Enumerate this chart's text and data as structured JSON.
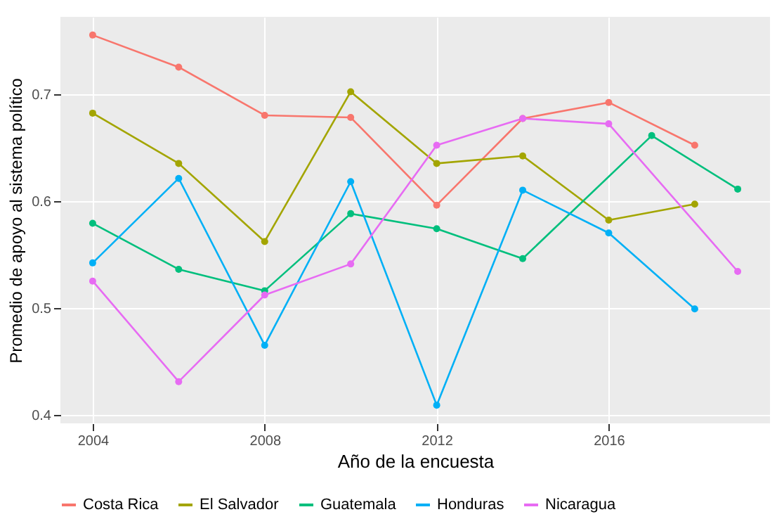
{
  "chart_data": {
    "type": "line",
    "xlabel": "Año de la encuesta",
    "ylabel": "Promedio de apoyo al sistema político",
    "xlim": [
      2003.25,
      2019.75
    ],
    "xticks": [
      2004,
      2008,
      2012,
      2016
    ],
    "ylim": [
      0.392,
      0.772
    ],
    "yticks": [
      0.4,
      0.5,
      0.6,
      0.7
    ],
    "grid": true,
    "legend": "bottom",
    "marker": "circle",
    "line_style": "solid",
    "series": [
      {
        "name": "Costa Rica",
        "color": "#f8766d",
        "x": [
          2004,
          2006,
          2008,
          2010,
          2012,
          2014,
          2016,
          2018
        ],
        "values": [
          0.755,
          0.725,
          0.68,
          0.678,
          0.596,
          0.677,
          0.692,
          0.652
        ]
      },
      {
        "name": "El Salvador",
        "color": "#a3a500",
        "x": [
          2004,
          2006,
          2008,
          2010,
          2012,
          2014,
          2016,
          2018
        ],
        "values": [
          0.682,
          0.635,
          0.562,
          0.702,
          0.635,
          0.642,
          0.582,
          0.597
        ]
      },
      {
        "name": "Guatemala",
        "color": "#00bf7d",
        "x": [
          2004,
          2006,
          2008,
          2010,
          2012,
          2014,
          2017,
          2019
        ],
        "values": [
          0.579,
          0.536,
          0.516,
          0.588,
          0.574,
          0.546,
          0.661,
          0.611
        ]
      },
      {
        "name": "Honduras",
        "color": "#00b0f6",
        "x": [
          2004,
          2006,
          2008,
          2010,
          2012,
          2014,
          2016,
          2018
        ],
        "values": [
          0.542,
          0.621,
          0.465,
          0.618,
          0.409,
          0.61,
          0.57,
          0.499
        ]
      },
      {
        "name": "Nicaragua",
        "color": "#e76bf3",
        "x": [
          2004,
          2006,
          2008,
          2010,
          2012,
          2014,
          2016,
          2019
        ],
        "values": [
          0.525,
          0.431,
          0.512,
          0.541,
          0.652,
          0.677,
          0.672,
          0.534
        ]
      }
    ]
  }
}
